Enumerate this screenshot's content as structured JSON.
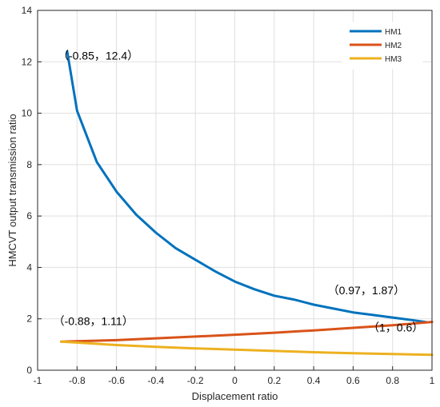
{
  "chart_data": {
    "type": "line",
    "xlabel": "Displacement ratio",
    "ylabel": "HMCVT output transmission ratio",
    "xlim": [
      -1,
      1
    ],
    "ylim": [
      0,
      14
    ],
    "xticks": [
      -1,
      -0.8,
      -0.6,
      -0.4,
      -0.2,
      0,
      0.2,
      0.4,
      0.6,
      0.8,
      1
    ],
    "yticks": [
      0,
      2,
      4,
      6,
      8,
      10,
      12,
      14
    ],
    "grid": true,
    "legend_position": "top-right",
    "series": [
      {
        "name": "HM1",
        "color": "#0072BD",
        "points": [
          [
            -0.85,
            12.4
          ],
          [
            -0.8,
            10.1
          ],
          [
            -0.7,
            8.1
          ],
          [
            -0.6,
            6.95
          ],
          [
            -0.5,
            6.05
          ],
          [
            -0.4,
            5.35
          ],
          [
            -0.3,
            4.75
          ],
          [
            -0.2,
            4.3
          ],
          [
            -0.1,
            3.85
          ],
          [
            0,
            3.45
          ],
          [
            0.1,
            3.15
          ],
          [
            0.2,
            2.9
          ],
          [
            0.3,
            2.75
          ],
          [
            0.4,
            2.55
          ],
          [
            0.5,
            2.4
          ],
          [
            0.6,
            2.25
          ],
          [
            0.7,
            2.15
          ],
          [
            0.8,
            2.05
          ],
          [
            0.9,
            1.95
          ],
          [
            0.97,
            1.87
          ]
        ]
      },
      {
        "name": "HM2",
        "color": "#D95319",
        "points": [
          [
            -0.88,
            1.11
          ],
          [
            -0.6,
            1.17
          ],
          [
            -0.4,
            1.24
          ],
          [
            -0.2,
            1.31
          ],
          [
            0,
            1.38
          ],
          [
            0.2,
            1.46
          ],
          [
            0.4,
            1.55
          ],
          [
            0.6,
            1.65
          ],
          [
            0.8,
            1.75
          ],
          [
            1,
            1.88
          ]
        ]
      },
      {
        "name": "HM3",
        "color": "#EDB120",
        "points": [
          [
            -0.88,
            1.11
          ],
          [
            -0.6,
            0.98
          ],
          [
            -0.4,
            0.91
          ],
          [
            -0.2,
            0.85
          ],
          [
            0,
            0.8
          ],
          [
            0.2,
            0.75
          ],
          [
            0.4,
            0.7
          ],
          [
            0.6,
            0.66
          ],
          [
            0.8,
            0.63
          ],
          [
            1,
            0.6
          ]
        ]
      }
    ],
    "annotations": [
      {
        "text": "（-0.85，12.4）",
        "x": -0.85,
        "y": 12.4
      },
      {
        "text": "（0.97，1.87）",
        "x": 0.97,
        "y": 1.87
      },
      {
        "text": "（-0.88，1.11）",
        "x": -0.88,
        "y": 1.11
      },
      {
        "text": "（1，0.6）",
        "x": 1,
        "y": 0.6
      }
    ]
  }
}
